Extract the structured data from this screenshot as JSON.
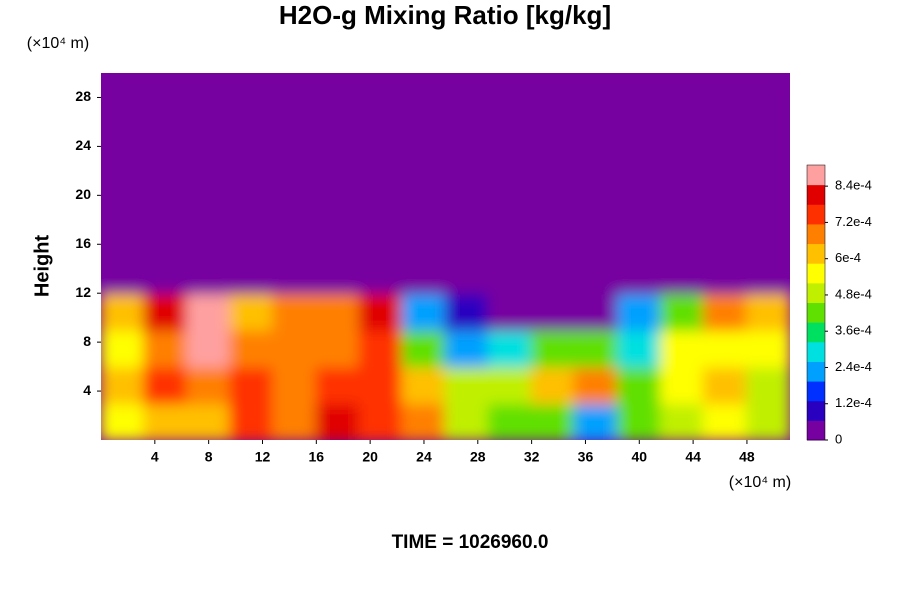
{
  "chart_data": {
    "type": "heatmap",
    "title": "H2O-g Mixing Ratio [kg/kg]",
    "y_label": "Height",
    "x_unit": "(×10⁴ m)",
    "y_unit": "(×10⁴ m)",
    "footer": "TIME = 1026960.0",
    "xlim": [
      0,
      51.2
    ],
    "ylim": [
      0,
      30
    ],
    "xticks": [
      4,
      8,
      12,
      16,
      20,
      24,
      28,
      32,
      36,
      40,
      44,
      48
    ],
    "yticks": [
      4,
      8,
      12,
      16,
      20,
      24,
      28
    ],
    "x": [
      1.6,
      4.8,
      8,
      11.2,
      14.4,
      17.6,
      20.8,
      24,
      27.2,
      30.4,
      33.6,
      36.8,
      40,
      43.2,
      46.4,
      49.6
    ],
    "y": [
      1.5,
      4.5,
      7.5,
      10.5,
      13.5,
      16.5,
      19.5,
      22.5,
      25.5,
      28.5
    ],
    "z": [
      [
        0.00058,
        0.0006,
        0.0006,
        0.00072,
        0.0007,
        0.0008,
        0.00072,
        0.0007,
        0.0005,
        0.00045,
        0.0004,
        0.0002,
        0.00045,
        0.0005,
        0.00055,
        0.0005
      ],
      [
        0.0006,
        0.00075,
        0.00065,
        0.00072,
        0.0007,
        0.00073,
        0.00075,
        0.0006,
        0.0005,
        0.0005,
        0.0006,
        0.00065,
        0.00045,
        0.00055,
        0.0006,
        0.0005
      ],
      [
        0.00058,
        0.0007,
        0.00085,
        0.0007,
        0.00068,
        0.0007,
        0.00072,
        0.0004,
        0.00025,
        0.0003,
        0.0004,
        0.00045,
        0.0003,
        0.00055,
        0.00058,
        0.00055
      ],
      [
        0.0006,
        0.0008,
        0.0009,
        0.00062,
        0.00065,
        0.0007,
        0.0008,
        0.0002,
        8e-05,
        5e-05,
        3e-05,
        3e-05,
        0.0002,
        0.0004,
        0.00065,
        0.0006
      ],
      [
        5e-05,
        5e-05,
        5e-05,
        5e-05,
        5e-05,
        5e-05,
        5e-05,
        4e-05,
        2e-05,
        3e-05,
        2e-05,
        1e-05,
        2e-05,
        3e-05,
        5e-05,
        5e-05
      ],
      [
        0,
        0,
        0,
        0,
        0,
        0,
        0,
        0,
        0,
        0,
        0,
        0,
        0,
        0,
        0,
        0
      ],
      [
        0,
        0,
        0,
        0,
        0,
        0,
        0,
        0,
        0,
        0,
        0,
        0,
        0,
        0,
        0,
        0
      ],
      [
        0,
        0,
        0,
        0,
        0,
        0,
        0,
        0,
        0,
        0,
        0,
        0,
        0,
        0,
        0,
        0
      ],
      [
        0,
        0,
        0,
        0,
        0,
        0,
        0,
        0,
        0,
        0,
        0,
        0,
        0,
        0,
        0,
        0
      ],
      [
        0,
        0,
        0,
        0,
        0,
        0,
        0,
        0,
        0,
        0,
        0,
        0,
        0,
        0,
        0,
        0
      ]
    ],
    "clim": [
      0,
      0.00091
    ],
    "colors": [
      "#7700a0",
      "#2a00c0",
      "#0030ff",
      "#00a0ff",
      "#00e0e0",
      "#00e060",
      "#60e000",
      "#c0f000",
      "#ffff00",
      "#ffc000",
      "#ff8000",
      "#ff3000",
      "#e00000",
      "#ffa0a0"
    ],
    "cticks": [
      0,
      {
        "value": 0.00012,
        "label": "1.2e-4"
      },
      {
        "value": 0.00024,
        "label": "2.4e-4"
      },
      {
        "value": 0.00036,
        "label": "3.6e-4"
      },
      {
        "value": 0.00048,
        "label": "4.8e-4"
      },
      {
        "value": 0.0006,
        "label": "6e-4"
      },
      {
        "value": 0.00072,
        "label": "7.2e-4"
      },
      {
        "value": 0.00084,
        "label": "8.4e-4"
      }
    ]
  }
}
